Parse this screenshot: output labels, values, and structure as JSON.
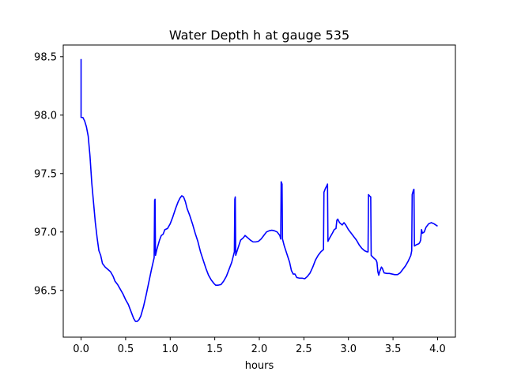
{
  "chart_data": {
    "type": "line",
    "title": "Water Depth h at gauge 535",
    "xlabel": "hours",
    "ylabel": "",
    "xlim": [
      -0.2,
      4.2
    ],
    "ylim": [
      96.1,
      98.6
    ],
    "xticks": [
      0.0,
      0.5,
      1.0,
      1.5,
      2.0,
      2.5,
      3.0,
      3.5,
      4.0
    ],
    "xtick_labels": [
      "0.0",
      "0.5",
      "1.0",
      "1.5",
      "2.0",
      "2.5",
      "3.0",
      "3.5",
      "4.0"
    ],
    "yticks": [
      96.5,
      97.0,
      97.5,
      98.0,
      98.5
    ],
    "ytick_labels": [
      "96.5",
      "97.0",
      "97.5",
      "98.0",
      "98.5"
    ],
    "grid": false,
    "series": [
      {
        "color": "#0000ff",
        "points": [
          [
            0.0,
            98.48
          ],
          [
            0.0,
            97.98
          ],
          [
            0.02,
            97.98
          ],
          [
            0.04,
            97.95
          ],
          [
            0.06,
            97.9
          ],
          [
            0.08,
            97.82
          ],
          [
            0.1,
            97.65
          ],
          [
            0.12,
            97.42
          ],
          [
            0.14,
            97.25
          ],
          [
            0.16,
            97.08
          ],
          [
            0.18,
            96.95
          ],
          [
            0.2,
            96.84
          ],
          [
            0.22,
            96.8
          ],
          [
            0.24,
            96.73
          ],
          [
            0.27,
            96.7
          ],
          [
            0.3,
            96.68
          ],
          [
            0.33,
            96.66
          ],
          [
            0.36,
            96.62
          ],
          [
            0.38,
            96.58
          ],
          [
            0.41,
            96.55
          ],
          [
            0.44,
            96.51
          ],
          [
            0.47,
            96.47
          ],
          [
            0.5,
            96.42
          ],
          [
            0.53,
            96.38
          ],
          [
            0.56,
            96.32
          ],
          [
            0.59,
            96.26
          ],
          [
            0.61,
            96.235
          ],
          [
            0.63,
            96.235
          ],
          [
            0.65,
            96.25
          ],
          [
            0.67,
            96.28
          ],
          [
            0.7,
            96.36
          ],
          [
            0.73,
            96.46
          ],
          [
            0.76,
            96.57
          ],
          [
            0.79,
            96.68
          ],
          [
            0.82,
            96.78
          ],
          [
            0.825,
            97.27
          ],
          [
            0.83,
            97.28
          ],
          [
            0.835,
            96.8
          ],
          [
            0.85,
            96.85
          ],
          [
            0.88,
            96.93
          ],
          [
            0.9,
            96.97
          ],
          [
            0.92,
            96.98
          ],
          [
            0.94,
            97.02
          ],
          [
            0.97,
            97.03
          ],
          [
            1.0,
            97.07
          ],
          [
            1.03,
            97.13
          ],
          [
            1.06,
            97.2
          ],
          [
            1.09,
            97.26
          ],
          [
            1.11,
            97.29
          ],
          [
            1.13,
            97.31
          ],
          [
            1.15,
            97.3
          ],
          [
            1.17,
            97.26
          ],
          [
            1.19,
            97.2
          ],
          [
            1.22,
            97.14
          ],
          [
            1.25,
            97.07
          ],
          [
            1.28,
            96.99
          ],
          [
            1.31,
            96.92
          ],
          [
            1.34,
            96.83
          ],
          [
            1.37,
            96.76
          ],
          [
            1.4,
            96.69
          ],
          [
            1.43,
            96.63
          ],
          [
            1.46,
            96.59
          ],
          [
            1.49,
            96.56
          ],
          [
            1.51,
            96.545
          ],
          [
            1.54,
            96.545
          ],
          [
            1.57,
            96.55
          ],
          [
            1.6,
            96.58
          ],
          [
            1.63,
            96.62
          ],
          [
            1.66,
            96.68
          ],
          [
            1.69,
            96.74
          ],
          [
            1.72,
            96.83
          ],
          [
            1.725,
            97.28
          ],
          [
            1.73,
            97.3
          ],
          [
            1.735,
            96.8
          ],
          [
            1.76,
            96.86
          ],
          [
            1.79,
            96.93
          ],
          [
            1.82,
            96.95
          ],
          [
            1.84,
            96.97
          ],
          [
            1.87,
            96.95
          ],
          [
            1.9,
            96.93
          ],
          [
            1.93,
            96.915
          ],
          [
            1.96,
            96.915
          ],
          [
            1.99,
            96.92
          ],
          [
            2.02,
            96.94
          ],
          [
            2.05,
            96.97
          ],
          [
            2.08,
            97.0
          ],
          [
            2.11,
            97.01
          ],
          [
            2.14,
            97.015
          ],
          [
            2.17,
            97.01
          ],
          [
            2.2,
            97.0
          ],
          [
            2.23,
            96.97
          ],
          [
            2.24,
            96.94
          ],
          [
            2.245,
            97.43
          ],
          [
            2.25,
            97.42
          ],
          [
            2.255,
            97.41
          ],
          [
            2.26,
            96.94
          ],
          [
            2.28,
            96.88
          ],
          [
            2.31,
            96.81
          ],
          [
            2.34,
            96.74
          ],
          [
            2.36,
            96.67
          ],
          [
            2.38,
            96.64
          ],
          [
            2.4,
            96.64
          ],
          [
            2.42,
            96.61
          ],
          [
            2.45,
            96.605
          ],
          [
            2.48,
            96.605
          ],
          [
            2.51,
            96.6
          ],
          [
            2.54,
            96.62
          ],
          [
            2.57,
            96.65
          ],
          [
            2.6,
            96.7
          ],
          [
            2.63,
            96.76
          ],
          [
            2.66,
            96.8
          ],
          [
            2.69,
            96.83
          ],
          [
            2.72,
            96.85
          ],
          [
            2.725,
            97.34
          ],
          [
            2.74,
            97.37
          ],
          [
            2.76,
            97.4
          ],
          [
            2.765,
            97.41
          ],
          [
            2.77,
            96.92
          ],
          [
            2.79,
            96.95
          ],
          [
            2.82,
            96.99
          ],
          [
            2.84,
            97.02
          ],
          [
            2.86,
            97.03
          ],
          [
            2.87,
            97.1
          ],
          [
            2.88,
            97.11
          ],
          [
            2.9,
            97.08
          ],
          [
            2.93,
            97.06
          ],
          [
            2.95,
            97.08
          ],
          [
            2.97,
            97.06
          ],
          [
            3.0,
            97.02
          ],
          [
            3.03,
            96.99
          ],
          [
            3.06,
            96.96
          ],
          [
            3.09,
            96.93
          ],
          [
            3.12,
            96.89
          ],
          [
            3.15,
            96.86
          ],
          [
            3.18,
            96.84
          ],
          [
            3.21,
            96.83
          ],
          [
            3.22,
            96.83
          ],
          [
            3.225,
            97.32
          ],
          [
            3.235,
            97.31
          ],
          [
            3.25,
            97.3
          ],
          [
            3.255,
            96.8
          ],
          [
            3.28,
            96.78
          ],
          [
            3.31,
            96.76
          ],
          [
            3.32,
            96.74
          ],
          [
            3.33,
            96.66
          ],
          [
            3.34,
            96.63
          ],
          [
            3.35,
            96.66
          ],
          [
            3.37,
            96.7
          ],
          [
            3.38,
            96.69
          ],
          [
            3.4,
            96.65
          ],
          [
            3.43,
            96.645
          ],
          [
            3.46,
            96.645
          ],
          [
            3.49,
            96.64
          ],
          [
            3.52,
            96.635
          ],
          [
            3.55,
            96.635
          ],
          [
            3.58,
            96.65
          ],
          [
            3.61,
            96.68
          ],
          [
            3.64,
            96.71
          ],
          [
            3.67,
            96.75
          ],
          [
            3.7,
            96.8
          ],
          [
            3.71,
            96.84
          ],
          [
            3.715,
            97.32
          ],
          [
            3.73,
            97.36
          ],
          [
            3.735,
            97.365
          ],
          [
            3.74,
            96.88
          ],
          [
            3.76,
            96.89
          ],
          [
            3.79,
            96.9
          ],
          [
            3.8,
            96.91
          ],
          [
            3.81,
            96.93
          ],
          [
            3.82,
            97.02
          ],
          [
            3.83,
            96.99
          ],
          [
            3.85,
            97.0
          ],
          [
            3.87,
            97.04
          ],
          [
            3.9,
            97.07
          ],
          [
            3.93,
            97.08
          ],
          [
            3.96,
            97.07
          ],
          [
            3.99,
            97.055
          ],
          [
            4.0,
            97.05
          ]
        ]
      }
    ]
  }
}
